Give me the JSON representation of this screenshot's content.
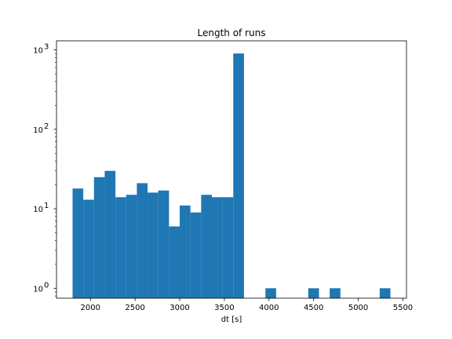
{
  "chart_data": {
    "type": "bar",
    "title": "Length of runs",
    "xlabel": "dt [s]",
    "ylabel": "",
    "y_scale": "log",
    "xlim": [
      1620,
      5540
    ],
    "ylim": [
      0.75,
      1300
    ],
    "x_ticks": [
      2000,
      2500,
      3000,
      3500,
      4000,
      4500,
      5000,
      5500
    ],
    "x_tick_labels": [
      "2000",
      "2500",
      "3000",
      "3500",
      "4000",
      "4500",
      "5000",
      "5500"
    ],
    "y_ticks": [
      1,
      10,
      100,
      1000
    ],
    "y_tick_labels": [
      {
        "base": "10",
        "exp": "0"
      },
      {
        "base": "10",
        "exp": "1"
      },
      {
        "base": "10",
        "exp": "2"
      },
      {
        "base": "10",
        "exp": "3"
      }
    ],
    "bar_color": "#1f77b4",
    "grid": false,
    "bins": [
      {
        "x0": 1800,
        "x1": 1920,
        "count": 18
      },
      {
        "x0": 1920,
        "x1": 2040,
        "count": 13
      },
      {
        "x0": 2040,
        "x1": 2160,
        "count": 25
      },
      {
        "x0": 2160,
        "x1": 2280,
        "count": 30
      },
      {
        "x0": 2280,
        "x1": 2400,
        "count": 14
      },
      {
        "x0": 2400,
        "x1": 2520,
        "count": 15
      },
      {
        "x0": 2520,
        "x1": 2640,
        "count": 21
      },
      {
        "x0": 2640,
        "x1": 2760,
        "count": 16
      },
      {
        "x0": 2760,
        "x1": 2880,
        "count": 17
      },
      {
        "x0": 2880,
        "x1": 3000,
        "count": 6
      },
      {
        "x0": 3000,
        "x1": 3120,
        "count": 11
      },
      {
        "x0": 3120,
        "x1": 3240,
        "count": 9
      },
      {
        "x0": 3240,
        "x1": 3360,
        "count": 15
      },
      {
        "x0": 3360,
        "x1": 3480,
        "count": 14
      },
      {
        "x0": 3480,
        "x1": 3600,
        "count": 14
      },
      {
        "x0": 3600,
        "x1": 3720,
        "count": 900
      },
      {
        "x0": 3960,
        "x1": 4080,
        "count": 1
      },
      {
        "x0": 4440,
        "x1": 4560,
        "count": 1
      },
      {
        "x0": 4680,
        "x1": 4800,
        "count": 1
      },
      {
        "x0": 5240,
        "x1": 5360,
        "count": 1
      }
    ]
  }
}
